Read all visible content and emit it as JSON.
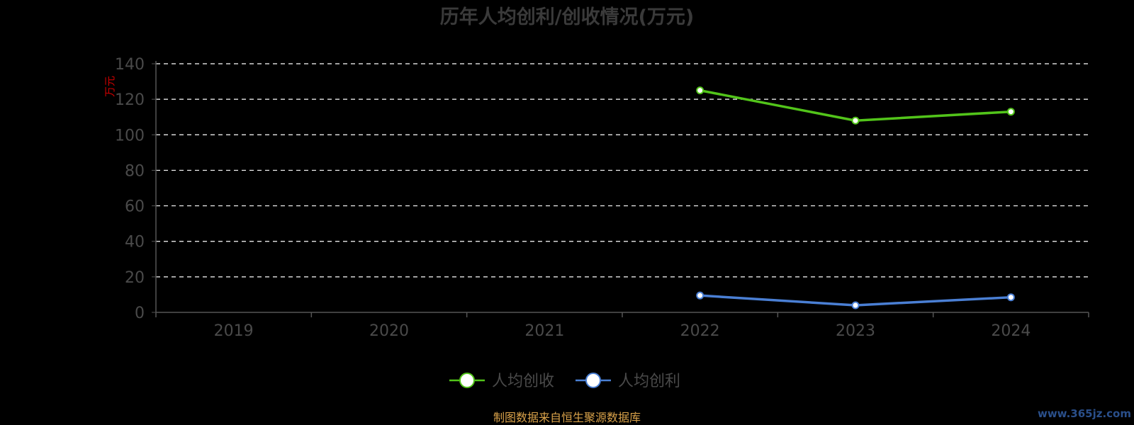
{
  "chart_data": {
    "type": "line",
    "title": "历年人均创利/创收情况(万元)",
    "ylabel": "万元",
    "categories": [
      "2019",
      "2020",
      "2021",
      "2022",
      "2023",
      "2024"
    ],
    "ylim": [
      0,
      140
    ],
    "yticks": [
      "0",
      "20",
      "40",
      "60",
      "80",
      "100",
      "120",
      "140"
    ],
    "grid": true,
    "legend_position": "bottom-center",
    "series": [
      {
        "name": "人均创收",
        "color": "#52c41a",
        "values": [
          null,
          null,
          null,
          125,
          108,
          113
        ]
      },
      {
        "name": "人均创利",
        "color": "#4a7fd4",
        "values": [
          null,
          null,
          null,
          9.5,
          4,
          8.5
        ]
      }
    ]
  },
  "footer": {
    "source": "制图数据来自恒生聚源数据库",
    "watermark": "www.365jz.com"
  },
  "colors": {
    "background": "#000000",
    "grid": "#ffffff",
    "axis": "#555555",
    "source": "#d9a24a"
  }
}
